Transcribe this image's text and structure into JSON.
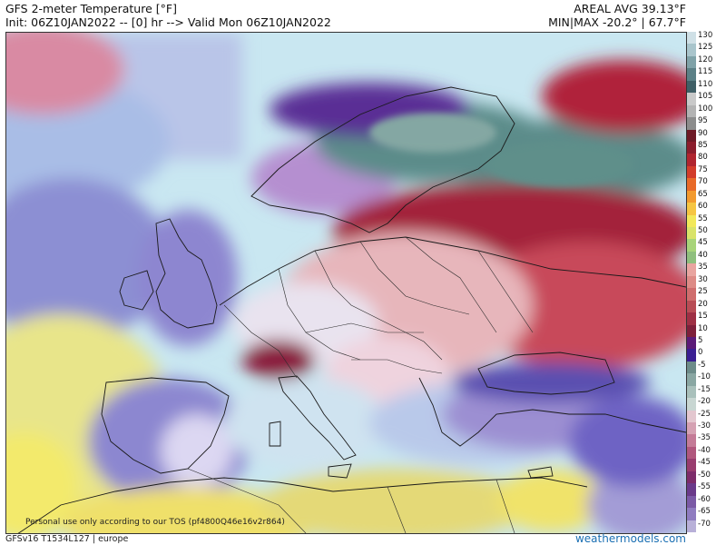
{
  "header": {
    "title": "GFS 2-meter Temperature [°F]",
    "init_line": "Init: 06Z10JAN2022 -- [0] hr --> Valid Mon 06Z10JAN2022",
    "areal_avg": "AREAL AVG 39.13°F",
    "min_max": "MIN|MAX -20.2° | 67.7°F"
  },
  "footer": {
    "tos_note": "Personal use only according to our TOS (pf4800Q46e16v2r864)",
    "model_tag": "GFSv16 T1534L127 | europe",
    "brand": "weathermodels.com"
  },
  "legend": {
    "unit": "°F",
    "levels": [
      {
        "label": "130",
        "color": "#cfe0e6"
      },
      {
        "label": "125",
        "color": "#a9c5cc"
      },
      {
        "label": "120",
        "color": "#7fa2a8"
      },
      {
        "label": "115",
        "color": "#5b8086"
      },
      {
        "label": "110",
        "color": "#3f5f66"
      },
      {
        "label": "105",
        "color": "#c9c9c9"
      },
      {
        "label": "100",
        "color": "#b3b3b3"
      },
      {
        "label": "95",
        "color": "#8c8c8c"
      },
      {
        "label": "90",
        "color": "#6e1a26"
      },
      {
        "label": "85",
        "color": "#8b1d2c"
      },
      {
        "label": "80",
        "color": "#b0242e"
      },
      {
        "label": "75",
        "color": "#d23c2a"
      },
      {
        "label": "70",
        "color": "#e86a28"
      },
      {
        "label": "65",
        "color": "#f29a2e"
      },
      {
        "label": "60",
        "color": "#f6c542"
      },
      {
        "label": "55",
        "color": "#f2e85a"
      },
      {
        "label": "50",
        "color": "#d9e36a"
      },
      {
        "label": "45",
        "color": "#a8d47a"
      },
      {
        "label": "40",
        "color": "#8fbf7e"
      },
      {
        "label": "35",
        "color": "#e9a5a0"
      },
      {
        "label": "30",
        "color": "#dd8b86"
      },
      {
        "label": "25",
        "color": "#cf6d6d"
      },
      {
        "label": "20",
        "color": "#b84c55"
      },
      {
        "label": "15",
        "color": "#9e2f44"
      },
      {
        "label": "10",
        "color": "#7e1f3a"
      },
      {
        "label": "5",
        "color": "#5b1a78"
      },
      {
        "label": "0",
        "color": "#3a1e92"
      },
      {
        "label": "-5",
        "color": "#6d8c8a"
      },
      {
        "label": "-10",
        "color": "#8aa7a3"
      },
      {
        "label": "-15",
        "color": "#a9c0bb"
      },
      {
        "label": "-20",
        "color": "#c8d6d2"
      },
      {
        "label": "-25",
        "color": "#e3c7cf"
      },
      {
        "label": "-30",
        "color": "#d5a2b3"
      },
      {
        "label": "-35",
        "color": "#c47b97"
      },
      {
        "label": "-40",
        "color": "#b0577d"
      },
      {
        "label": "-45",
        "color": "#983c6e"
      },
      {
        "label": "-50",
        "color": "#7d2c6a"
      },
      {
        "label": "-55",
        "color": "#6a3a8a"
      },
      {
        "label": "-60",
        "color": "#7b5aa6"
      },
      {
        "label": "-65",
        "color": "#8f7cc0"
      },
      {
        "label": "-70",
        "color": "#b8b0d8"
      }
    ]
  }
}
